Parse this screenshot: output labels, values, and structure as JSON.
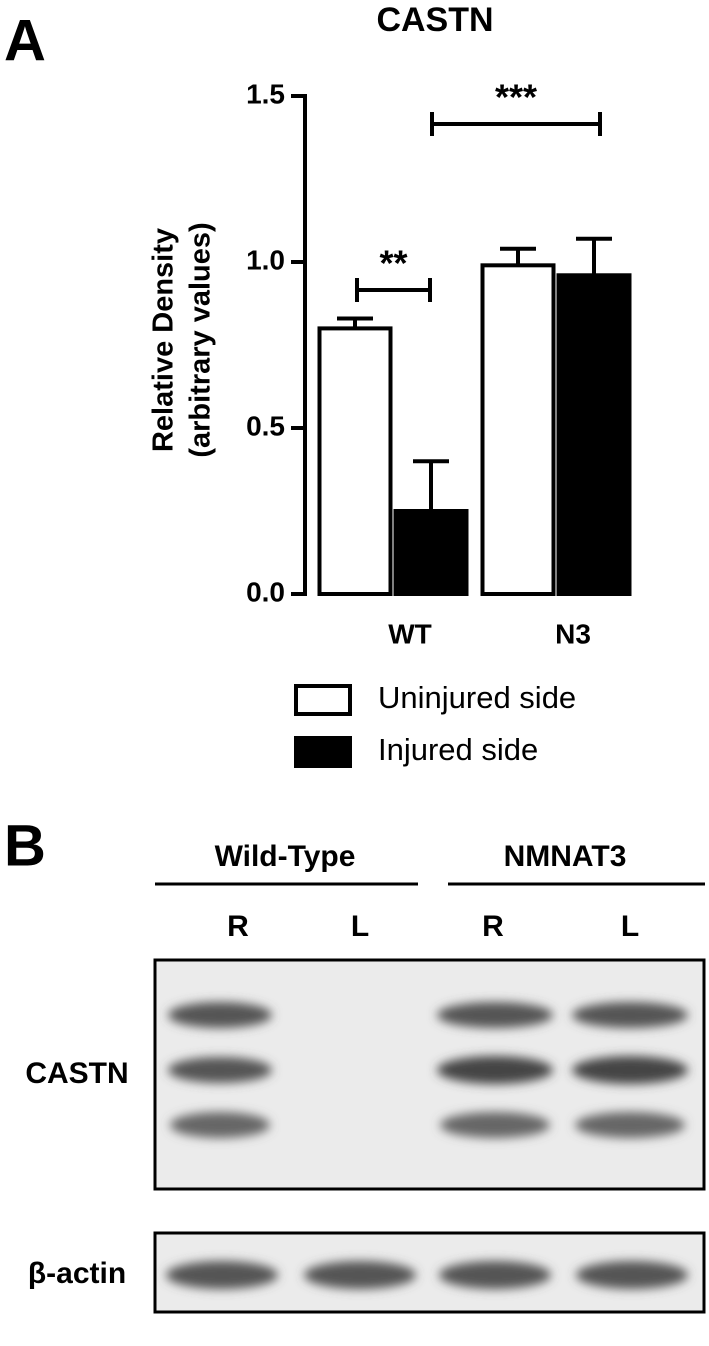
{
  "chart_data": {
    "type": "bar",
    "title": "CASTN",
    "ylabel": [
      "Relative Density",
      "(arbitrary values)"
    ],
    "categories": [
      "WT",
      "N3"
    ],
    "series": [
      {
        "name": "Uninjured side",
        "color": "#ffffff",
        "values": [
          0.8,
          0.99
        ],
        "errors": [
          0.03,
          0.05
        ]
      },
      {
        "name": "Injured side",
        "color": "#000000",
        "values": [
          0.25,
          0.96
        ],
        "errors": [
          0.15,
          0.11
        ]
      }
    ],
    "ylim": [
      0,
      1.5
    ],
    "yticks": [
      {
        "value": 0,
        "label": "0.0"
      },
      0.5,
      {
        "value": 1,
        "label": "1.0"
      },
      1.5
    ],
    "annotations": [
      "**",
      "***"
    ]
  },
  "panel_labels": [
    "A",
    "B"
  ],
  "blot": {
    "groups": [
      "Wild-Type",
      "NMNAT3"
    ],
    "lanes": [
      "R",
      "L",
      "R",
      "L"
    ],
    "rows": [
      "CASTN",
      "β-actin"
    ]
  }
}
